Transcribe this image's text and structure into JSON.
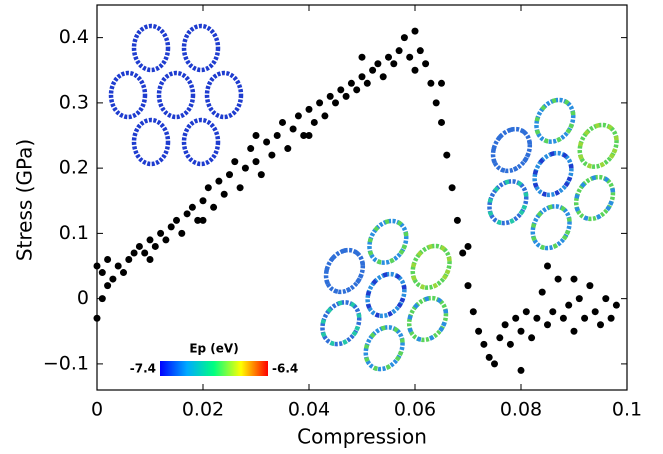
{
  "chart_data": {
    "type": "scatter",
    "x_label": "Compression",
    "y_label": "Stress (GPa)",
    "color": "#000000",
    "xlim": [
      0,
      0.1
    ],
    "xticks": [
      0,
      0.02,
      0.04,
      0.06,
      0.08,
      0.1
    ],
    "ylim": [
      -0.14,
      0.45
    ],
    "yticks": [
      {
        "value": -0.1,
        "label": "−0.1"
      },
      0,
      0.1,
      0.2,
      0.3,
      0.4
    ],
    "colorbar": {
      "title": "Ep (eV)",
      "min": -7.4,
      "max": -6.4
    },
    "x": [
      0.0,
      0.0,
      0.001,
      0.001,
      0.002,
      0.002,
      0.003,
      0.004,
      0.005,
      0.006,
      0.007,
      0.008,
      0.009,
      0.01,
      0.011,
      0.012,
      0.013,
      0.014,
      0.015,
      0.016,
      0.017,
      0.018,
      0.019,
      0.02,
      0.021,
      0.022,
      0.023,
      0.024,
      0.025,
      0.026,
      0.027,
      0.028,
      0.029,
      0.03,
      0.031,
      0.032,
      0.033,
      0.034,
      0.035,
      0.036,
      0.037,
      0.038,
      0.039,
      0.04,
      0.041,
      0.042,
      0.043,
      0.044,
      0.045,
      0.046,
      0.047,
      0.048,
      0.049,
      0.05,
      0.051,
      0.052,
      0.053,
      0.054,
      0.055,
      0.056,
      0.057,
      0.058,
      0.059,
      0.06,
      0.061,
      0.062,
      0.063,
      0.064,
      0.065,
      0.066,
      0.067,
      0.068,
      0.069,
      0.07,
      0.071,
      0.072,
      0.073,
      0.074,
      0.075,
      0.076,
      0.077,
      0.078,
      0.079,
      0.08,
      0.081,
      0.082,
      0.083,
      0.084,
      0.085,
      0.086,
      0.087,
      0.088,
      0.089,
      0.09,
      0.091,
      0.092,
      0.093,
      0.094,
      0.095,
      0.096,
      0.097,
      0.098,
      0.01,
      0.02,
      0.03,
      0.04,
      0.05,
      0.06,
      0.065,
      0.07,
      0.08,
      0.085,
      0.09
    ],
    "values": [
      0.05,
      -0.03,
      0.04,
      0.0,
      0.06,
      0.02,
      0.03,
      0.05,
      0.04,
      0.06,
      0.07,
      0.08,
      0.07,
      0.09,
      0.08,
      0.1,
      0.09,
      0.11,
      0.12,
      0.1,
      0.13,
      0.14,
      0.12,
      0.15,
      0.17,
      0.14,
      0.18,
      0.16,
      0.19,
      0.21,
      0.17,
      0.2,
      0.23,
      0.21,
      0.19,
      0.24,
      0.22,
      0.25,
      0.27,
      0.23,
      0.26,
      0.28,
      0.25,
      0.29,
      0.27,
      0.3,
      0.28,
      0.31,
      0.3,
      0.32,
      0.31,
      0.33,
      0.32,
      0.34,
      0.33,
      0.35,
      0.36,
      0.34,
      0.37,
      0.36,
      0.38,
      0.4,
      0.37,
      0.41,
      0.38,
      0.36,
      0.33,
      0.3,
      0.27,
      0.22,
      0.17,
      0.12,
      0.07,
      0.02,
      -0.02,
      -0.05,
      -0.07,
      -0.09,
      -0.1,
      -0.06,
      -0.04,
      -0.07,
      -0.03,
      -0.05,
      -0.02,
      -0.06,
      -0.03,
      0.01,
      -0.04,
      -0.02,
      0.03,
      -0.03,
      -0.01,
      -0.05,
      0.0,
      -0.03,
      0.02,
      -0.02,
      -0.04,
      0.0,
      -0.03,
      -0.01,
      0.06,
      0.12,
      0.25,
      0.25,
      0.37,
      0.35,
      0.33,
      0.08,
      -0.11,
      0.05,
      0.03
    ]
  }
}
